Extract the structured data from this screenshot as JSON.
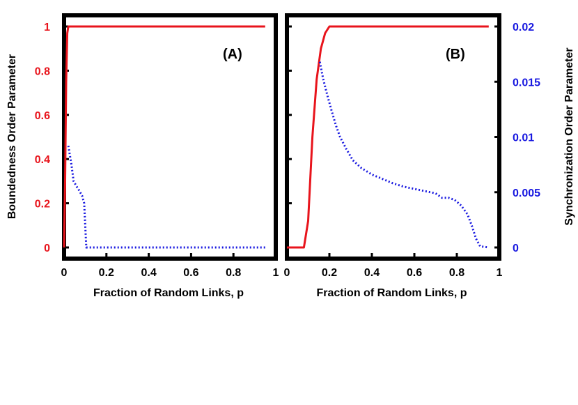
{
  "chart_data": [
    {
      "panel": "A",
      "type": "line",
      "panel_label": "(A)",
      "xlabel": "Fraction of Random Links, p",
      "ylabel": "Boundedness Order Parameter",
      "xlim": [
        0,
        1
      ],
      "ylim": [
        0,
        1
      ],
      "x_ticks": [
        "0",
        "0.2",
        "0.4",
        "0.6",
        "0.8",
        "1"
      ],
      "y_ticks": [
        "0",
        "0.2",
        "0.4",
        "0.6",
        "0.8",
        "1"
      ],
      "grid": false,
      "series": [
        {
          "axis": "left",
          "color": "#e8141c",
          "style": "solid",
          "points": [
            [
              0,
              0
            ],
            [
              0.005,
              0.3
            ],
            [
              0.01,
              0.75
            ],
            [
              0.015,
              0.97
            ],
            [
              0.02,
              1.0
            ],
            [
              0.95,
              1.0
            ]
          ]
        },
        {
          "axis": "right",
          "color": "#1818e0",
          "style": "dotted",
          "points": [
            [
              0.02,
              0.0092
            ],
            [
              0.035,
              0.0075
            ],
            [
              0.045,
              0.006
            ],
            [
              0.06,
              0.0055
            ],
            [
              0.07,
              0.0052
            ],
            [
              0.085,
              0.0047
            ],
            [
              0.095,
              0.004
            ],
            [
              0.1,
              0.002
            ],
            [
              0.105,
              0.0
            ],
            [
              0.95,
              0.0
            ]
          ]
        }
      ]
    },
    {
      "panel": "B",
      "type": "line",
      "panel_label": "(B)",
      "xlabel": "Fraction of Random Links, p",
      "ylabel_right": "Synchronization Order Parameter",
      "xlim": [
        0,
        1
      ],
      "ylim": [
        0,
        1
      ],
      "ylim_right": [
        0,
        0.02
      ],
      "x_ticks": [
        "0",
        "0.2",
        "0.4",
        "0.6",
        "0.8",
        "1"
      ],
      "y_ticks_right": [
        "0",
        "0.005",
        "0.01",
        "0.015",
        "0.02"
      ],
      "grid": false,
      "series": [
        {
          "axis": "left",
          "color": "#e8141c",
          "style": "solid",
          "points": [
            [
              0,
              0
            ],
            [
              0.08,
              0
            ],
            [
              0.1,
              0.12
            ],
            [
              0.12,
              0.5
            ],
            [
              0.14,
              0.76
            ],
            [
              0.16,
              0.9
            ],
            [
              0.18,
              0.97
            ],
            [
              0.2,
              1.0
            ],
            [
              0.95,
              1.0
            ]
          ]
        },
        {
          "axis": "right",
          "color": "#1818e0",
          "style": "dotted",
          "points": [
            [
              0.155,
              0.0168
            ],
            [
              0.17,
              0.0153
            ],
            [
              0.19,
              0.0138
            ],
            [
              0.21,
              0.0124
            ],
            [
              0.23,
              0.0111
            ],
            [
              0.25,
              0.01
            ],
            [
              0.28,
              0.0089
            ],
            [
              0.31,
              0.0079
            ],
            [
              0.35,
              0.0072
            ],
            [
              0.4,
              0.0066
            ],
            [
              0.45,
              0.0062
            ],
            [
              0.5,
              0.0058
            ],
            [
              0.55,
              0.0055
            ],
            [
              0.6,
              0.0053
            ],
            [
              0.65,
              0.0051
            ],
            [
              0.7,
              0.0049
            ],
            [
              0.73,
              0.0045
            ],
            [
              0.76,
              0.0045
            ],
            [
              0.79,
              0.0043
            ],
            [
              0.82,
              0.0038
            ],
            [
              0.85,
              0.003
            ],
            [
              0.87,
              0.002
            ],
            [
              0.89,
              0.0008
            ],
            [
              0.91,
              0.0001
            ],
            [
              0.95,
              0.0
            ]
          ]
        }
      ]
    }
  ],
  "colors": {
    "left_axis_ticks": "#e8141c",
    "right_axis_ticks": "#1818e0",
    "frame": "#000000"
  }
}
